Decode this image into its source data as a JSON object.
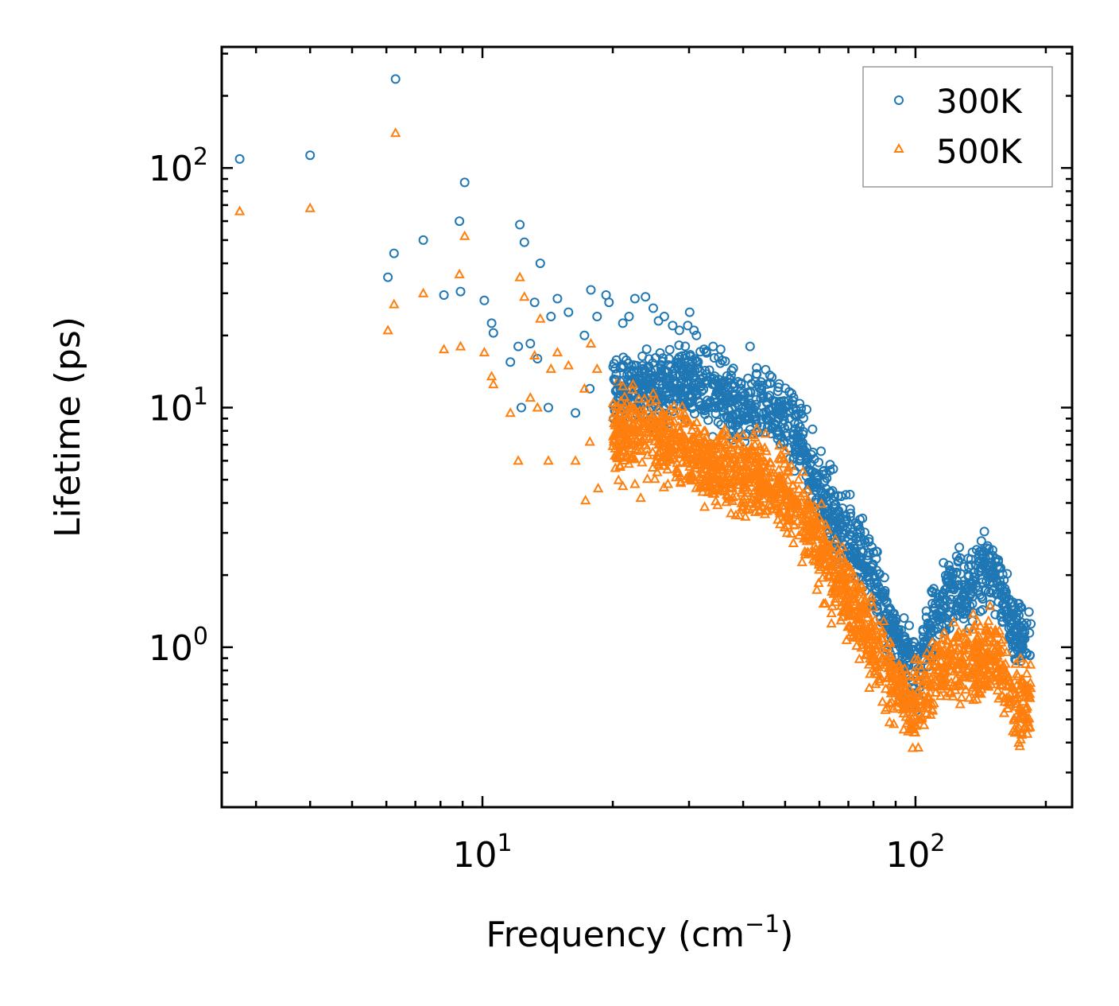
{
  "chart_data": {
    "type": "scatter",
    "title": "",
    "xlabel": "Frequency (cm",
    "xlabel_sup": "−1",
    "xlabel_close": ")",
    "ylabel": "Lifetime (ps)",
    "xscale": "log",
    "yscale": "log",
    "xlim": [
      2.5,
      230
    ],
    "ylim": [
      0.215,
      320
    ],
    "x_ticks": [
      {
        "value": 10,
        "base": "10",
        "exp": "1"
      },
      {
        "value": 100,
        "base": "10",
        "exp": "2"
      }
    ],
    "y_ticks": [
      {
        "value": 1,
        "base": "10",
        "exp": "0"
      },
      {
        "value": 10,
        "base": "10",
        "exp": "1"
      },
      {
        "value": 100,
        "base": "10",
        "exp": "2"
      }
    ],
    "legend_position": "top-right",
    "series": [
      {
        "name": "300K",
        "marker": "circle-open",
        "color": "#1f77b4",
        "points": [
          [
            2.75,
            109
          ],
          [
            4,
            113
          ],
          [
            6.3,
            235
          ],
          [
            6.05,
            35
          ],
          [
            6.25,
            44
          ],
          [
            7.3,
            50
          ],
          [
            8.15,
            29.5
          ],
          [
            8.85,
            60
          ],
          [
            9.1,
            87
          ],
          [
            8.9,
            30.5
          ],
          [
            10.1,
            28
          ],
          [
            10.5,
            22.5
          ],
          [
            10.6,
            20.5
          ],
          [
            11.6,
            15.5
          ],
          [
            12.2,
            58
          ],
          [
            12.5,
            49
          ],
          [
            12.1,
            18
          ],
          [
            12.3,
            10
          ],
          [
            12.9,
            18.5
          ],
          [
            13.2,
            27.5
          ],
          [
            13.4,
            16
          ],
          [
            13.6,
            40
          ],
          [
            14.2,
            10
          ],
          [
            14.4,
            24
          ],
          [
            14.9,
            28.5
          ],
          [
            15.8,
            25
          ],
          [
            16.4,
            9.5
          ],
          [
            17.2,
            20
          ],
          [
            17.8,
            31
          ],
          [
            17.7,
            12
          ],
          [
            18.4,
            24
          ],
          [
            19.3,
            29.5
          ],
          [
            19.6,
            27.5
          ],
          [
            20.2,
            13
          ],
          [
            21.1,
            22.5
          ],
          [
            21.8,
            24
          ],
          [
            22.5,
            28.5
          ],
          [
            23.2,
            13
          ],
          [
            23.8,
            29
          ],
          [
            24.8,
            26
          ],
          [
            25.5,
            23
          ],
          [
            26.3,
            24
          ],
          [
            27.5,
            22
          ],
          [
            28.5,
            21
          ],
          [
            29.8,
            22
          ],
          [
            30.1,
            25
          ],
          [
            30.8,
            21
          ],
          [
            31.2,
            20
          ],
          [
            32.5,
            17.5
          ],
          [
            34.1,
            18
          ],
          [
            35.5,
            17.5
          ],
          [
            41.5,
            18
          ]
        ]
      },
      {
        "name": "500K",
        "marker": "triangle-open",
        "color": "#ff7f0e",
        "points": [
          [
            2.75,
            66
          ],
          [
            4,
            68
          ],
          [
            6.3,
            140
          ],
          [
            6.05,
            21
          ],
          [
            6.25,
            27
          ],
          [
            7.3,
            30
          ],
          [
            8.15,
            17.5
          ],
          [
            8.85,
            36
          ],
          [
            9.1,
            52
          ],
          [
            8.9,
            18
          ],
          [
            10.1,
            17
          ],
          [
            10.5,
            13.5
          ],
          [
            10.6,
            12.5
          ],
          [
            11.6,
            9.5
          ],
          [
            12.2,
            35
          ],
          [
            12.5,
            29
          ],
          [
            12.1,
            6
          ],
          [
            12.9,
            11
          ],
          [
            13.2,
            16.5
          ],
          [
            13.4,
            10
          ],
          [
            13.6,
            23.5
          ],
          [
            14.2,
            6
          ],
          [
            14.4,
            14.5
          ],
          [
            14.9,
            17
          ],
          [
            15.8,
            15
          ],
          [
            16.4,
            6
          ],
          [
            17.2,
            12
          ],
          [
            17.8,
            18.5
          ],
          [
            17.7,
            7.2
          ],
          [
            18.4,
            14.5
          ],
          [
            17.3,
            4.1
          ],
          [
            18.5,
            4.6
          ],
          [
            21.1,
            4.7
          ],
          [
            22.5,
            4.8
          ],
          [
            23.2,
            4.2
          ]
        ]
      }
    ],
    "bulk": {
      "description_free": true,
      "300K_band": [
        [
          20,
          12
        ],
        [
          25,
          12
        ],
        [
          30,
          13
        ],
        [
          35,
          11
        ],
        [
          40,
          10
        ],
        [
          45,
          10
        ],
        [
          50,
          9
        ],
        [
          55,
          7
        ],
        [
          60,
          4.5
        ],
        [
          65,
          3.5
        ],
        [
          70,
          3
        ],
        [
          75,
          2.4
        ],
        [
          80,
          1.9
        ],
        [
          85,
          1.4
        ],
        [
          90,
          1.1
        ],
        [
          95,
          0.9
        ],
        [
          100,
          0.75
        ],
        [
          110,
          1.3
        ],
        [
          120,
          1.7
        ],
        [
          130,
          1.8
        ],
        [
          140,
          2.0
        ],
        [
          150,
          2.2
        ],
        [
          160,
          1.6
        ],
        [
          170,
          1.1
        ],
        [
          180,
          1.1
        ]
      ],
      "500K_band": [
        [
          20,
          8
        ],
        [
          25,
          7.5
        ],
        [
          30,
          6.5
        ],
        [
          35,
          5.5
        ],
        [
          40,
          5.2
        ],
        [
          45,
          5
        ],
        [
          50,
          4.5
        ],
        [
          55,
          3.5
        ],
        [
          60,
          2.6
        ],
        [
          65,
          1.9
        ],
        [
          70,
          1.6
        ],
        [
          75,
          1.3
        ],
        [
          80,
          1.0
        ],
        [
          85,
          0.85
        ],
        [
          90,
          0.7
        ],
        [
          95,
          0.6
        ],
        [
          100,
          0.55
        ],
        [
          110,
          0.8
        ],
        [
          120,
          0.9
        ],
        [
          130,
          0.85
        ],
        [
          140,
          0.9
        ],
        [
          150,
          0.95
        ],
        [
          160,
          0.8
        ],
        [
          170,
          0.55
        ],
        [
          180,
          0.6
        ]
      ]
    }
  }
}
